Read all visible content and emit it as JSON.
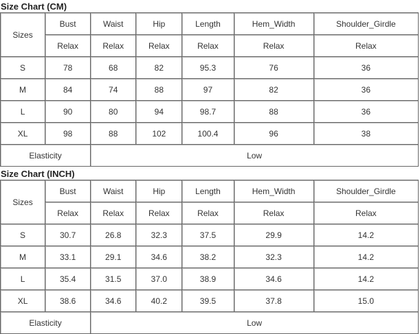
{
  "tables": [
    {
      "title": "Size Chart (CM)",
      "sizes_label": "Sizes",
      "columns": [
        "Bust",
        "Waist",
        "Hip",
        "Length",
        "Hem_Width",
        "Shoulder_Girdle"
      ],
      "subheaders": [
        "Relax",
        "Relax",
        "Relax",
        "Relax",
        "Relax",
        "Relax"
      ],
      "rows": [
        {
          "size": "S",
          "values": [
            "78",
            "68",
            "82",
            "95.3",
            "76",
            "36"
          ]
        },
        {
          "size": "M",
          "values": [
            "84",
            "74",
            "88",
            "97",
            "82",
            "36"
          ]
        },
        {
          "size": "L",
          "values": [
            "90",
            "80",
            "94",
            "98.7",
            "88",
            "36"
          ]
        },
        {
          "size": "XL",
          "values": [
            "98",
            "88",
            "102",
            "100.4",
            "96",
            "38"
          ]
        }
      ],
      "elasticity_label": "Elasticity",
      "elasticity_value": "Low"
    },
    {
      "title": "Size Chart (INCH)",
      "sizes_label": "Sizes",
      "columns": [
        "Bust",
        "Waist",
        "Hip",
        "Length",
        "Hem_Width",
        "Shoulder_Girdle"
      ],
      "subheaders": [
        "Relax",
        "Relax",
        "Relax",
        "Relax",
        "Relax",
        "Relax"
      ],
      "rows": [
        {
          "size": "S",
          "values": [
            "30.7",
            "26.8",
            "32.3",
            "37.5",
            "29.9",
            "14.2"
          ]
        },
        {
          "size": "M",
          "values": [
            "33.1",
            "29.1",
            "34.6",
            "38.2",
            "32.3",
            "14.2"
          ]
        },
        {
          "size": "L",
          "values": [
            "35.4",
            "31.5",
            "37.0",
            "38.9",
            "34.6",
            "14.2"
          ]
        },
        {
          "size": "XL",
          "values": [
            "38.6",
            "34.6",
            "40.2",
            "39.5",
            "37.8",
            "15.0"
          ]
        }
      ],
      "elasticity_label": "Elasticity",
      "elasticity_value": "Low"
    }
  ]
}
